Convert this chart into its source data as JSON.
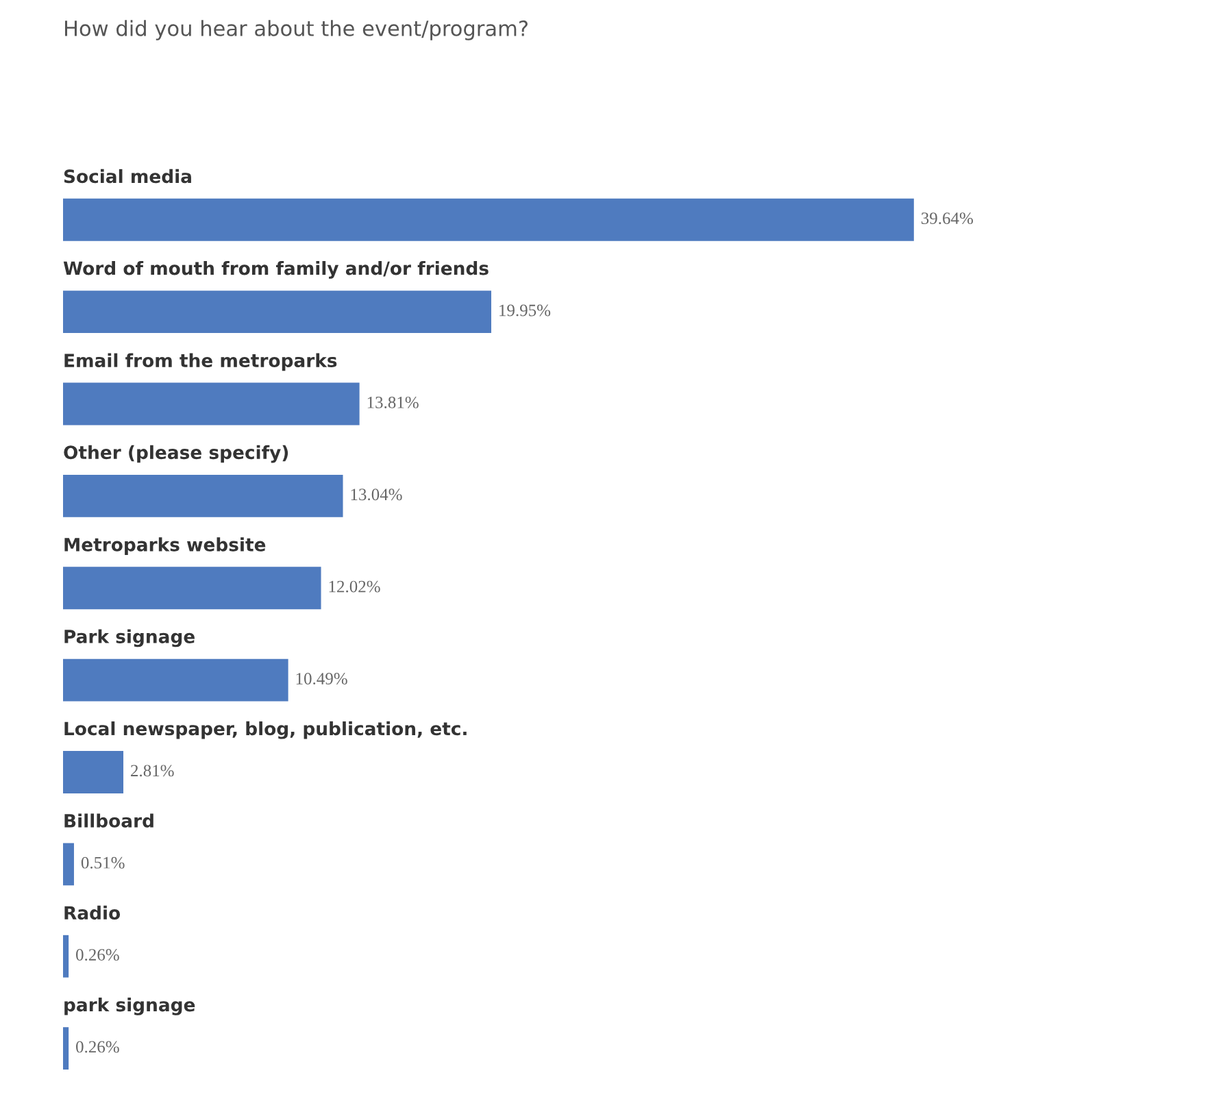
{
  "chart_data": {
    "type": "bar",
    "orientation": "horizontal",
    "title": "How did you hear about the event/program?",
    "categories": [
      "Social media",
      "Word of mouth from family and/or friends",
      "Email from the metroparks",
      "Other (please specify)",
      "Metroparks website",
      "Park signage",
      "Local newspaper, blog, publication, etc.",
      "Billboard",
      "Radio",
      "park signage"
    ],
    "values": [
      39.64,
      19.95,
      13.81,
      13.04,
      12.02,
      10.49,
      2.81,
      0.51,
      0.26,
      0.26
    ],
    "value_labels": [
      "39.64%",
      "19.95%",
      "13.81%",
      "13.04%",
      "12.02%",
      "10.49%",
      "2.81%",
      "0.51%",
      "0.26%",
      "0.26%"
    ],
    "color": "#4f7bbf",
    "tick_labels": false
  }
}
